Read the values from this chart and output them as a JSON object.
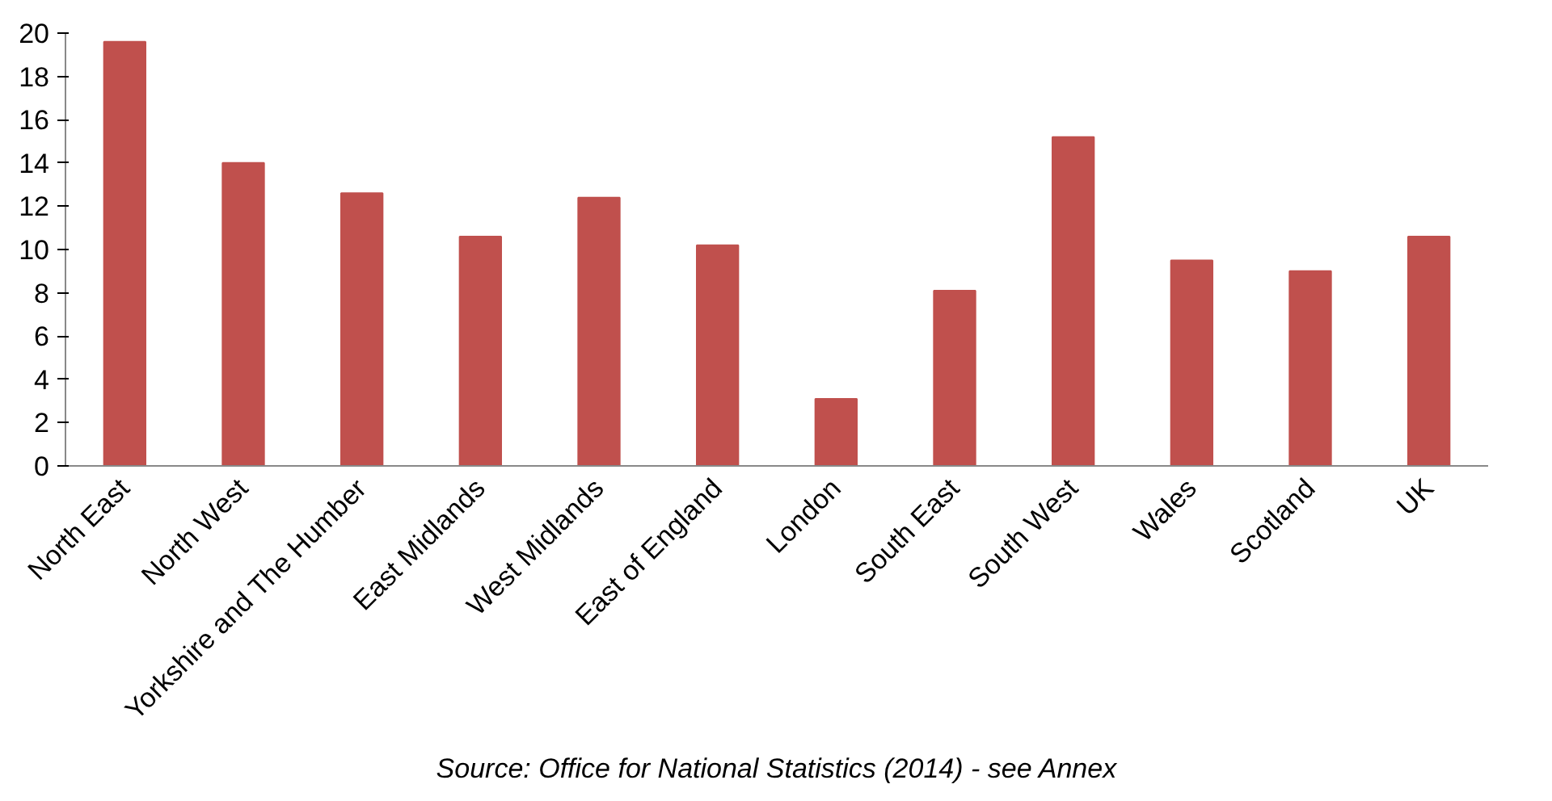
{
  "chart_data": {
    "type": "bar",
    "categories": [
      "North East",
      "North West",
      "Yorkshire and The Humber",
      "East Midlands",
      "West Midlands",
      "East of England",
      "London",
      "South East",
      "South West",
      "Wales",
      "Scotland",
      "UK"
    ],
    "values": [
      19.6,
      14.0,
      12.6,
      10.6,
      12.4,
      10.2,
      3.1,
      8.1,
      15.2,
      9.5,
      9.0,
      10.6
    ],
    "color": "#c0504d",
    "ylim": [
      0,
      20
    ],
    "yticks": [
      0,
      2,
      4,
      6,
      8,
      10,
      12,
      14,
      16,
      18,
      20
    ],
    "grid": false,
    "annotations": [
      "Source: Office for National Statistics (2014) - see Annex"
    ]
  }
}
